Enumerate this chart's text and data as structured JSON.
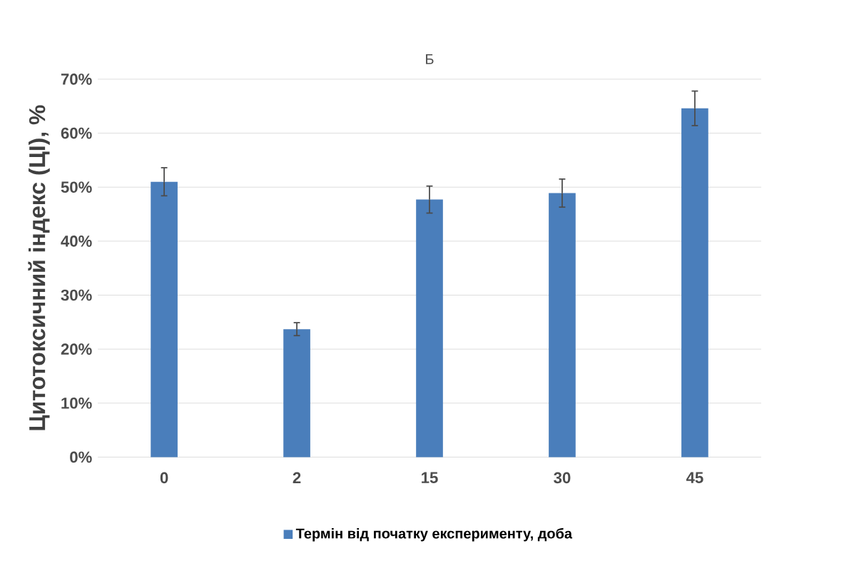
{
  "chart_data": {
    "type": "bar",
    "title": "Б",
    "ylabel": "Цитотоксичний індекс (ЦІ), %",
    "categories": [
      "0",
      "2",
      "15",
      "30",
      "45"
    ],
    "series": [
      {
        "name": "Термін від початку експерименту, доба",
        "color": "#4a7ebb",
        "values": [
          51,
          23.7,
          47.7,
          48.9,
          64.6
        ],
        "errors": [
          2.6,
          1.2,
          2.5,
          2.6,
          3.2
        ]
      }
    ],
    "ylim": [
      0,
      70
    ],
    "yticks": [
      {
        "value": 0,
        "label": "0%"
      },
      {
        "value": 10,
        "label": "10%"
      },
      {
        "value": 20,
        "label": "20%"
      },
      {
        "value": 30,
        "label": "30%"
      },
      {
        "value": 40,
        "label": "40%"
      },
      {
        "value": 50,
        "label": "50%"
      },
      {
        "value": 60,
        "label": "60%"
      },
      {
        "value": 70,
        "label": "70%"
      }
    ],
    "grid": "y",
    "legend": "bottom"
  }
}
